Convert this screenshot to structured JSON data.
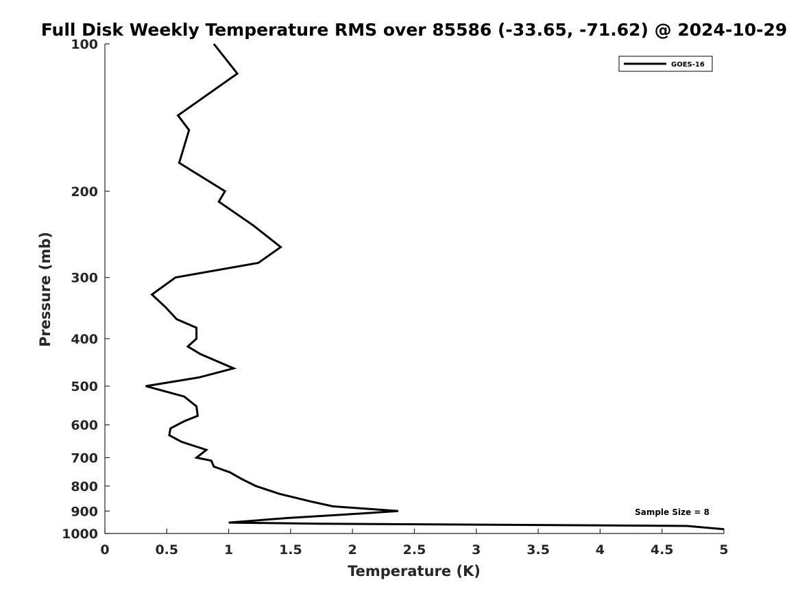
{
  "chart_data": {
    "type": "line",
    "title": "Full Disk Weekly Temperature RMS over 85586 (-33.65, -71.62) @ 2024-10-29",
    "xlabel": "Temperature (K)",
    "ylabel": "Pressure (mb)",
    "xlim": [
      0,
      5
    ],
    "ylim": [
      1000,
      100
    ],
    "y_scale": "log",
    "x_ticks": [
      0,
      0.5,
      1,
      1.5,
      2,
      2.5,
      3,
      3.5,
      4,
      4.5,
      5
    ],
    "x_tick_labels": [
      "0",
      "0.5",
      "1",
      "1.5",
      "2",
      "2.5",
      "3",
      "3.5",
      "4",
      "4.5",
      "5"
    ],
    "y_ticks": [
      100,
      200,
      300,
      400,
      500,
      600,
      700,
      800,
      900,
      1000
    ],
    "y_tick_labels": [
      "100",
      "200",
      "300",
      "400",
      "500",
      "600",
      "700",
      "800",
      "900",
      "1000"
    ],
    "grid": false,
    "legend_position": "top-right",
    "series": [
      {
        "name": "GOES-16",
        "color": "#000000",
        "x": [
          0.88,
          1.07,
          0.59,
          0.68,
          0.6,
          0.97,
          0.92,
          1.2,
          1.42,
          1.24,
          0.57,
          0.38,
          0.49,
          0.58,
          0.74,
          0.74,
          0.67,
          0.77,
          1.04,
          0.76,
          0.33,
          0.64,
          0.74,
          0.75,
          0.64,
          0.53,
          0.52,
          0.62,
          0.82,
          0.74,
          0.86,
          0.88,
          1.01,
          1.11,
          1.22,
          1.41,
          1.66,
          1.84,
          2.37,
          2.08,
          1.47,
          1.0,
          1.73,
          4.7,
          5.0
        ],
        "y": [
          100,
          115,
          140,
          150,
          175,
          200,
          210,
          235,
          260,
          280,
          300,
          325,
          345,
          365,
          380,
          400,
          415,
          430,
          460,
          480,
          500,
          525,
          550,
          575,
          590,
          610,
          630,
          650,
          675,
          700,
          710,
          730,
          750,
          775,
          800,
          830,
          860,
          880,
          900,
          910,
          930,
          950,
          955,
          965,
          980
        ]
      }
    ],
    "annotation": "Sample Size = 8"
  }
}
